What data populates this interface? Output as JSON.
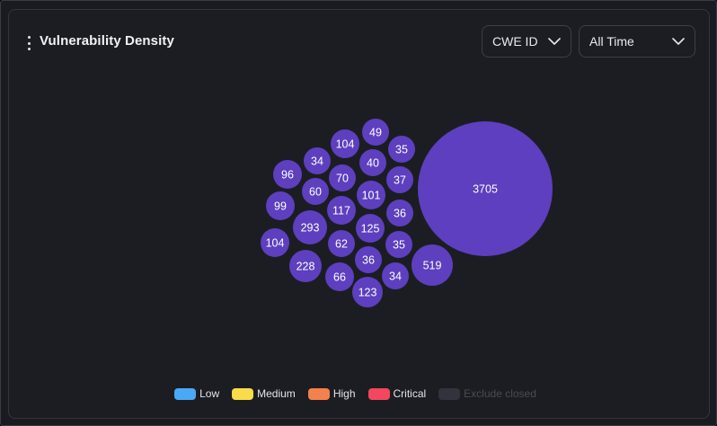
{
  "widget": {
    "title": "Vulnerability Density",
    "menu_icon": "kebab-vertical-icon"
  },
  "filters": {
    "group_by": {
      "value": "CWE ID",
      "icon": "chevron-down-icon"
    },
    "time_range": {
      "value": "All Time",
      "icon": "chevron-down-icon"
    }
  },
  "chart_data": {
    "type": "bubble",
    "bubble_color": "#5d3fbf",
    "values": [
      3705,
      519,
      293,
      228,
      125,
      123,
      117,
      104,
      104,
      101,
      99,
      96,
      70,
      66,
      62,
      60,
      49,
      40,
      37,
      36,
      36,
      35,
      35,
      34,
      34
    ]
  },
  "legend": {
    "items": [
      {
        "label": "Low",
        "color": "#4aa9f5",
        "active": true
      },
      {
        "label": "Medium",
        "color": "#f8dc4a",
        "active": true
      },
      {
        "label": "High",
        "color": "#f4814c",
        "active": true
      },
      {
        "label": "Critical",
        "color": "#f2475e",
        "active": true
      },
      {
        "label": "Exclude closed",
        "color": "#32333c",
        "active": false
      }
    ]
  }
}
